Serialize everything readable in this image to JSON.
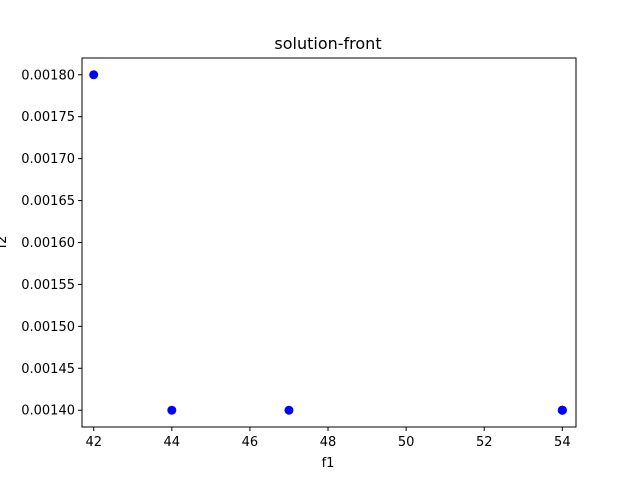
{
  "chart_data": {
    "type": "scatter",
    "title": "solution-front",
    "xlabel": "f1",
    "ylabel": "f2",
    "xlim": [
      41.7,
      54.35
    ],
    "ylim": [
      0.00138,
      0.00182
    ],
    "xticks": [
      42,
      44,
      46,
      48,
      50,
      52,
      54
    ],
    "yticks": [
      0.0014,
      0.00145,
      0.0015,
      0.00155,
      0.0016,
      0.00165,
      0.0017,
      0.00175,
      0.0018
    ],
    "ytick_labels": [
      "0.00140",
      "0.00145",
      "0.00150",
      "0.00155",
      "0.00160",
      "0.00165",
      "0.00170",
      "0.00175",
      "0.00180"
    ],
    "grid": false,
    "series": [
      {
        "color": "#0000ff",
        "marker": "circle",
        "points": [
          {
            "x": 42,
            "y": 0.0018
          },
          {
            "x": 44,
            "y": 0.0014
          },
          {
            "x": 47,
            "y": 0.0014
          },
          {
            "x": 54,
            "y": 0.0014
          },
          {
            "x": 54,
            "y": 0.0014
          },
          {
            "x": 54,
            "y": 0.0014
          }
        ]
      }
    ]
  }
}
